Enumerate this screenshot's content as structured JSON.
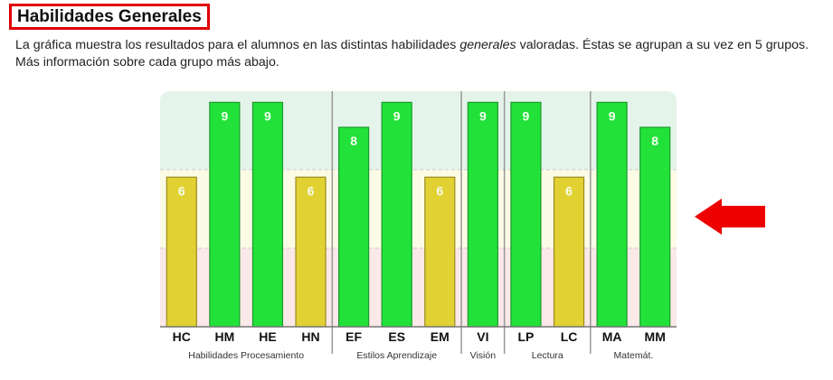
{
  "header": {
    "title": "Habilidades Generales"
  },
  "description": {
    "line1_a": "La gráfica muestra los resultados para el alumnos en las distintas habilidades ",
    "line1_em": "generales",
    "line1_b": " valoradas. Éstas se agrupan a su vez en 5 grupos.",
    "line2": "Más información sobre cada grupo más abajo."
  },
  "chart_data": {
    "type": "bar",
    "categories": [
      "HC",
      "HM",
      "HE",
      "HN",
      "EF",
      "ES",
      "EM",
      "VI",
      "LP",
      "LC",
      "MA",
      "MM"
    ],
    "values": [
      6,
      9,
      9,
      6,
      8,
      9,
      6,
      9,
      9,
      6,
      9,
      8
    ],
    "groups": [
      {
        "label": "Habilidades Procesamiento",
        "count": 4
      },
      {
        "label": "Estilos Aprendizaje",
        "count": 3
      },
      {
        "label": "Visión",
        "count": 1
      },
      {
        "label": "Lectura",
        "count": 2
      },
      {
        "label": "Matemát.",
        "count": 2
      }
    ],
    "ylim": [
      0,
      9.45
    ],
    "bands": [
      {
        "from": 0,
        "to": 3.15,
        "color": "#fbe8e8"
      },
      {
        "from": 3.15,
        "to": 6.3,
        "color": "#fcfbe6"
      },
      {
        "from": 6.3,
        "to": 9.45,
        "color": "#e4f4ea"
      }
    ],
    "colors": {
      "high": "#22e23a",
      "medium": "#e2d133"
    },
    "grid": false
  },
  "annotation": {
    "arrow_color": "#ee0000",
    "icon": "arrow-left-icon"
  }
}
